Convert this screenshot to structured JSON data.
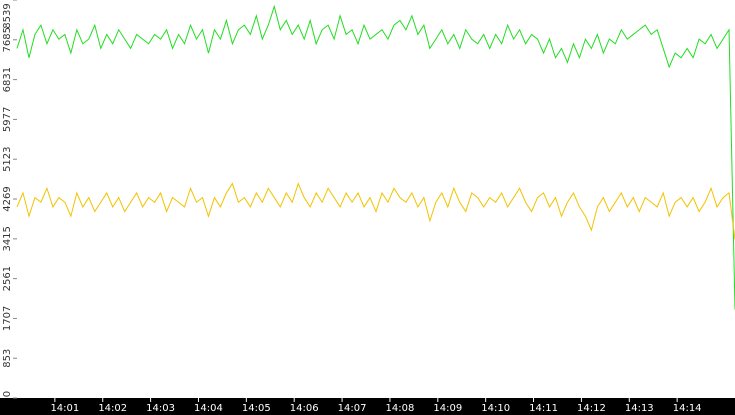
{
  "chart_data": {
    "type": "line",
    "x": [
      0,
      0.125,
      0.25,
      0.375,
      0.5,
      0.625,
      0.75,
      0.875,
      1,
      1.125,
      1.25,
      1.375,
      1.5,
      1.625,
      1.75,
      1.875,
      2,
      2.125,
      2.25,
      2.375,
      2.5,
      2.625,
      2.75,
      2.875,
      3,
      3.125,
      3.25,
      3.375,
      3.5,
      3.625,
      3.75,
      3.875,
      4,
      4.125,
      4.25,
      4.375,
      4.5,
      4.625,
      4.75,
      4.875,
      5,
      5.125,
      5.25,
      5.375,
      5.5,
      5.625,
      5.75,
      5.875,
      6,
      6.125,
      6.25,
      6.375,
      6.5,
      6.625,
      6.75,
      6.875,
      7,
      7.125,
      7.25,
      7.375,
      7.5,
      7.625,
      7.75,
      7.875,
      8,
      8.125,
      8.25,
      8.375,
      8.5,
      8.625,
      8.75,
      8.875,
      9,
      9.125,
      9.25,
      9.375,
      9.5,
      9.625,
      9.75,
      9.875,
      10,
      10.125,
      10.25,
      10.375,
      10.5,
      10.625,
      10.75,
      10.875,
      11,
      11.125,
      11.25,
      11.375,
      11.5,
      11.625,
      11.75,
      11.875,
      12,
      12.125,
      12.25,
      12.375,
      12.5,
      12.625,
      12.75,
      12.875,
      13,
      13.125,
      13.25,
      13.375,
      13.5,
      13.625,
      13.75,
      13.875,
      14,
      14.125,
      14.25,
      14.375,
      14.5,
      14.625,
      14.75,
      14.875,
      15
    ],
    "series": [
      {
        "color": "#22dd22",
        "values": [
          7500,
          7900,
          7300,
          7800,
          8000,
          7600,
          7900,
          7700,
          7800,
          7400,
          7900,
          7600,
          7700,
          8000,
          7500,
          7800,
          7600,
          7900,
          7700,
          7500,
          7800,
          7700,
          7600,
          7800,
          7700,
          7900,
          7500,
          7800,
          7600,
          8000,
          7700,
          7900,
          7400,
          7900,
          7700,
          8100,
          7600,
          7900,
          8000,
          7800,
          8200,
          7700,
          8000,
          8400,
          7900,
          8100,
          7800,
          8000,
          7700,
          8100,
          7600,
          7900,
          8000,
          7700,
          8200,
          7800,
          7900,
          7600,
          8000,
          7700,
          7800,
          7900,
          7700,
          8000,
          8100,
          7900,
          8200,
          7800,
          8000,
          7500,
          7700,
          7900,
          7600,
          7800,
          7500,
          7900,
          7700,
          7600,
          7800,
          7500,
          7800,
          7600,
          8000,
          7700,
          7900,
          7600,
          7800,
          7700,
          7400,
          7700,
          7300,
          7500,
          7200,
          7600,
          7300,
          7700,
          7500,
          7800,
          7400,
          7700,
          7600,
          7900,
          7700,
          7800,
          7900,
          8000,
          7800,
          7900,
          7500,
          7100,
          7400,
          7300,
          7500,
          7300,
          7700,
          7600,
          7800,
          7500,
          7700,
          7900,
          1900
        ]
      },
      {
        "color": "#f2c200",
        "values": [
          4100,
          4400,
          3900,
          4300,
          4200,
          4500,
          4100,
          4300,
          4200,
          3900,
          4400,
          4100,
          4300,
          4000,
          4200,
          4400,
          4100,
          4300,
          4000,
          4200,
          4400,
          4100,
          4300,
          4200,
          4400,
          4000,
          4300,
          4200,
          4100,
          4500,
          4200,
          4300,
          3900,
          4300,
          4100,
          4400,
          4600,
          4200,
          4300,
          4100,
          4400,
          4200,
          4500,
          4300,
          4100,
          4400,
          4200,
          4600,
          4300,
          4100,
          4400,
          4200,
          4500,
          4300,
          4100,
          4400,
          4200,
          4400,
          4100,
          4300,
          4000,
          4400,
          4200,
          4500,
          4300,
          4200,
          4400,
          4100,
          4300,
          3800,
          4200,
          4400,
          4100,
          4500,
          4200,
          4000,
          4400,
          4300,
          4100,
          4300,
          4200,
          4400,
          4100,
          4300,
          4500,
          4200,
          4000,
          4300,
          4400,
          4100,
          4300,
          3900,
          4200,
          4400,
          4100,
          3900,
          3600,
          4100,
          4300,
          4000,
          4200,
          4400,
          4100,
          4300,
          4000,
          4300,
          4200,
          4100,
          4400,
          3900,
          4200,
          4300,
          4100,
          4300,
          4000,
          4200,
          4500,
          4100,
          4300,
          4400,
          3400
        ]
      }
    ],
    "xlim": [
      0,
      15
    ],
    "xticks": [
      {
        "value": 1,
        "label": "14:01"
      },
      {
        "value": 2,
        "label": "14:02"
      },
      {
        "value": 3,
        "label": "14:03"
      },
      {
        "value": 4,
        "label": "14:04"
      },
      {
        "value": 5,
        "label": "14:05"
      },
      {
        "value": 6,
        "label": "14:06"
      },
      {
        "value": 7,
        "label": "14:07"
      },
      {
        "value": 8,
        "label": "14:08"
      },
      {
        "value": 9,
        "label": "14:09"
      },
      {
        "value": 10,
        "label": "14:10"
      },
      {
        "value": 11,
        "label": "14:11"
      },
      {
        "value": 12,
        "label": "14:12"
      },
      {
        "value": 13,
        "label": "14:13"
      },
      {
        "value": 14,
        "label": "14:14"
      }
    ],
    "ylim": [
      0,
      8539
    ],
    "yticks": [
      0,
      853,
      1707,
      2561,
      3415,
      4269,
      5123,
      5977,
      6831,
      7685,
      8539
    ]
  }
}
